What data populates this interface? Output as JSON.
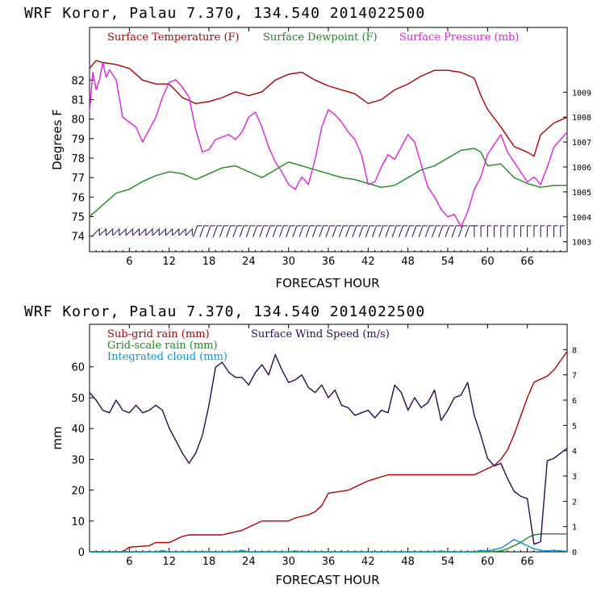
{
  "colors": {
    "temperature": "#b00000",
    "dewpoint": "#1a8a1a",
    "pressure": "#e020e0",
    "subgrid_rain": "#b00000",
    "grid_rain": "#1a8a1a",
    "cloud": "#1090d0",
    "wind": "#2a0a50"
  },
  "chart_data": [
    {
      "type": "line",
      "title": "WRF   Koror, Palau   7.370, 134.540  2014022500",
      "xlabel": "FORECAST HOUR",
      "ylabel": "Degrees F",
      "xlim": [
        0,
        72
      ],
      "ylim": [
        73.2,
        84.7
      ],
      "y2lim": [
        1002.6,
        1011.6
      ],
      "xticks": [
        6,
        12,
        18,
        24,
        30,
        36,
        42,
        48,
        54,
        60,
        66
      ],
      "xtick_labels": [
        "6",
        "12",
        "18",
        "24",
        "30",
        "36",
        "42",
        "48",
        "54",
        "60",
        "66"
      ],
      "yticks": [
        74,
        75,
        76,
        77,
        78,
        79,
        80,
        81,
        82
      ],
      "ytick_labels": [
        "74",
        "75",
        "76",
        "77",
        "78",
        "79",
        "80",
        "81",
        "82"
      ],
      "y2ticks": [
        1003,
        1004,
        1005,
        1006,
        1007,
        1008,
        1009
      ],
      "y2tick_labels": [
        "1003",
        "1004",
        "1005",
        "1006",
        "1007",
        "1008",
        "1009"
      ],
      "legend": [
        "Surface Temperature (F)",
        "Surface Dewpoint (F)",
        "Surface Pressure (mb)"
      ],
      "series": [
        {
          "name": "Surface Temperature (F)",
          "axis": "left",
          "x": [
            0,
            1,
            2,
            4,
            6,
            8,
            10,
            12,
            14,
            16,
            18,
            20,
            22,
            24,
            26,
            28,
            30,
            32,
            34,
            36,
            38,
            40,
            42,
            44,
            46,
            48,
            50,
            52,
            54,
            56,
            58,
            59,
            60,
            62,
            64,
            66,
            67,
            68,
            70,
            72
          ],
          "y": [
            82.6,
            83.0,
            82.9,
            82.8,
            82.6,
            82.0,
            81.8,
            81.8,
            81.1,
            80.8,
            80.9,
            81.1,
            81.4,
            81.2,
            81.4,
            82.0,
            82.3,
            82.4,
            82.0,
            81.7,
            81.5,
            81.3,
            80.8,
            81.0,
            81.5,
            81.8,
            82.2,
            82.5,
            82.5,
            82.4,
            82.1,
            81.2,
            80.5,
            79.6,
            78.6,
            78.3,
            78.1,
            79.2,
            79.8,
            80.1
          ]
        },
        {
          "name": "Surface Dewpoint (F)",
          "axis": "left",
          "x": [
            0,
            2,
            4,
            6,
            8,
            10,
            12,
            14,
            16,
            18,
            20,
            22,
            24,
            26,
            28,
            30,
            32,
            34,
            36,
            38,
            40,
            42,
            44,
            46,
            48,
            50,
            52,
            54,
            56,
            58,
            59,
            60,
            62,
            64,
            66,
            68,
            70,
            72
          ],
          "y": [
            75.0,
            75.6,
            76.2,
            76.4,
            76.8,
            77.1,
            77.3,
            77.2,
            76.9,
            77.2,
            77.5,
            77.6,
            77.3,
            77.0,
            77.4,
            77.8,
            77.6,
            77.4,
            77.2,
            77.0,
            76.9,
            76.7,
            76.5,
            76.6,
            77.0,
            77.4,
            77.6,
            78.0,
            78.4,
            78.5,
            78.3,
            77.6,
            77.7,
            77.0,
            76.7,
            76.5,
            76.6,
            76.6
          ]
        },
        {
          "name": "Surface Pressure (mb)",
          "axis": "right",
          "x": [
            0,
            0.5,
            1,
            1.5,
            2,
            2.5,
            3,
            4,
            5,
            6,
            7,
            8,
            9,
            10,
            11,
            12,
            13,
            14,
            15,
            16,
            17,
            18,
            19,
            20,
            21,
            22,
            23,
            24,
            25,
            26,
            27,
            28,
            29,
            30,
            31,
            32,
            33,
            34,
            35,
            36,
            37,
            38,
            39,
            40,
            41,
            42,
            43,
            44,
            45,
            46,
            47,
            48,
            49,
            50,
            51,
            52,
            53,
            54,
            55,
            56,
            57,
            58,
            59,
            60,
            61,
            62,
            63,
            64,
            65,
            66,
            67,
            68,
            69,
            70,
            71,
            72
          ],
          "y": [
            1008.2,
            1009.8,
            1009.1,
            1009.5,
            1010.2,
            1009.6,
            1009.9,
            1009.5,
            1008.0,
            1007.8,
            1007.6,
            1007.0,
            1007.5,
            1008.0,
            1008.8,
            1009.4,
            1009.5,
            1009.2,
            1008.8,
            1007.5,
            1006.6,
            1006.7,
            1007.1,
            1007.2,
            1007.3,
            1007.1,
            1007.4,
            1008.0,
            1008.2,
            1007.6,
            1006.8,
            1006.2,
            1005.8,
            1005.3,
            1005.1,
            1005.6,
            1005.3,
            1006.3,
            1007.6,
            1008.3,
            1008.1,
            1007.8,
            1007.4,
            1007.1,
            1006.5,
            1005.3,
            1005.4,
            1006.0,
            1006.5,
            1006.3,
            1006.8,
            1007.3,
            1007.0,
            1006.1,
            1005.2,
            1004.8,
            1004.3,
            1004.0,
            1004.1,
            1003.6,
            1004.2,
            1005.1,
            1005.6,
            1006.5,
            1006.9,
            1007.3,
            1006.6,
            1006.2,
            1005.8,
            1005.4,
            1005.6,
            1005.3,
            1006.0,
            1006.8,
            1007.1,
            1007.4
          ]
        }
      ],
      "wind_barbs_y": 74.2
    },
    {
      "type": "line",
      "title": "WRF   Koror, Palau   7.370, 134.540  2014022500",
      "xlabel": "FORECAST HOUR",
      "ylabel": "mm",
      "xlim": [
        0,
        72
      ],
      "ylim": [
        0,
        73.8
      ],
      "y2lim": [
        0,
        9.0
      ],
      "xticks": [
        6,
        12,
        18,
        24,
        30,
        36,
        42,
        48,
        54,
        60,
        66
      ],
      "xtick_labels": [
        "6",
        "12",
        "18",
        "24",
        "30",
        "36",
        "42",
        "48",
        "54",
        "60",
        "66"
      ],
      "yticks": [
        0,
        10,
        20,
        30,
        40,
        50,
        60
      ],
      "ytick_labels": [
        "0",
        "10",
        "20",
        "30",
        "40",
        "50",
        "60"
      ],
      "y2ticks": [
        0,
        1,
        2,
        3,
        4,
        5,
        6,
        7,
        8
      ],
      "y2tick_labels": [
        "0",
        "1",
        "2",
        "3",
        "4",
        "5",
        "6",
        "7",
        "8"
      ],
      "legend": [
        "Sub-grid rain (mm)",
        "Grid-scale rain (mm)",
        "Integrated cloud (mm)",
        "Surface Wind Speed (m/s)"
      ],
      "series": [
        {
          "name": "Sub-grid rain (mm)",
          "axis": "left",
          "x": [
            0,
            5,
            6,
            9,
            10,
            12,
            13,
            14,
            15,
            20,
            21,
            23,
            24,
            25,
            26,
            30,
            31,
            33,
            34,
            35,
            36,
            39,
            40,
            41,
            42,
            45,
            46,
            50,
            55,
            58,
            59,
            60,
            61,
            62,
            63,
            64,
            65,
            66,
            67,
            68,
            69,
            70,
            71,
            72
          ],
          "y": [
            0,
            0,
            1.5,
            2,
            3,
            3,
            4,
            5,
            5.5,
            5.5,
            6,
            7,
            8,
            9,
            10,
            10,
            11,
            12,
            13,
            15,
            19,
            20,
            21,
            22,
            23,
            25,
            25,
            25,
            25,
            25,
            26,
            27,
            28,
            30,
            33,
            38,
            44,
            50,
            55,
            56,
            57,
            59,
            62,
            65
          ]
        },
        {
          "name": "Grid-scale rain (mm)",
          "axis": "left",
          "x": [
            0,
            60,
            62,
            63,
            64,
            65,
            66,
            67,
            68,
            72
          ],
          "y": [
            0,
            0,
            0.3,
            1,
            2,
            3,
            4.5,
            5.5,
            5.8,
            5.8
          ]
        },
        {
          "name": "Integrated cloud (mm)",
          "axis": "left",
          "x": [
            0,
            10,
            11,
            12,
            22,
            23,
            24,
            30,
            31,
            32,
            52,
            53,
            54,
            58,
            59,
            60,
            61,
            62,
            63,
            64,
            65,
            66,
            67,
            68,
            69,
            70,
            71,
            72
          ],
          "y": [
            0,
            0,
            0.4,
            0,
            0,
            0.5,
            0,
            0,
            0.3,
            0,
            0,
            0.3,
            0,
            0,
            0.5,
            0.3,
            0.8,
            1.2,
            2.5,
            4,
            3,
            2,
            1,
            0.5,
            0.3,
            0.5,
            0.3,
            0.2
          ]
        },
        {
          "name": "Surface Wind Speed (m/s)",
          "axis": "right",
          "x": [
            0,
            1,
            2,
            3,
            4,
            5,
            6,
            7,
            8,
            9,
            10,
            11,
            12,
            13,
            14,
            15,
            16,
            17,
            18,
            19,
            20,
            21,
            22,
            23,
            24,
            25,
            26,
            27,
            28,
            29,
            30,
            31,
            32,
            33,
            34,
            35,
            36,
            37,
            38,
            39,
            40,
            41,
            42,
            43,
            44,
            45,
            46,
            47,
            48,
            49,
            50,
            51,
            52,
            53,
            54,
            55,
            56,
            57,
            58,
            59,
            60,
            61,
            62,
            63,
            64,
            65,
            66,
            67,
            68,
            69,
            70,
            71,
            72
          ],
          "y": [
            6.3,
            6.0,
            5.6,
            5.5,
            6.0,
            5.6,
            5.5,
            5.8,
            5.5,
            5.6,
            5.8,
            5.6,
            4.9,
            4.4,
            3.9,
            3.5,
            3.9,
            4.6,
            5.8,
            7.3,
            7.5,
            7.1,
            6.9,
            6.9,
            6.6,
            7.1,
            7.4,
            7.0,
            7.8,
            7.2,
            6.7,
            6.8,
            7.0,
            6.5,
            6.3,
            6.6,
            6.1,
            6.4,
            5.8,
            5.7,
            5.4,
            5.5,
            5.6,
            5.3,
            5.6,
            5.5,
            6.6,
            6.3,
            5.6,
            6.1,
            5.7,
            5.9,
            6.4,
            5.2,
            5.6,
            6.1,
            6.2,
            6.7,
            5.4,
            4.6,
            3.7,
            3.4,
            3.5,
            2.9,
            2.4,
            2.2,
            2.1,
            0.3,
            0.4,
            3.6,
            3.7,
            3.9,
            4.1
          ]
        }
      ]
    }
  ]
}
